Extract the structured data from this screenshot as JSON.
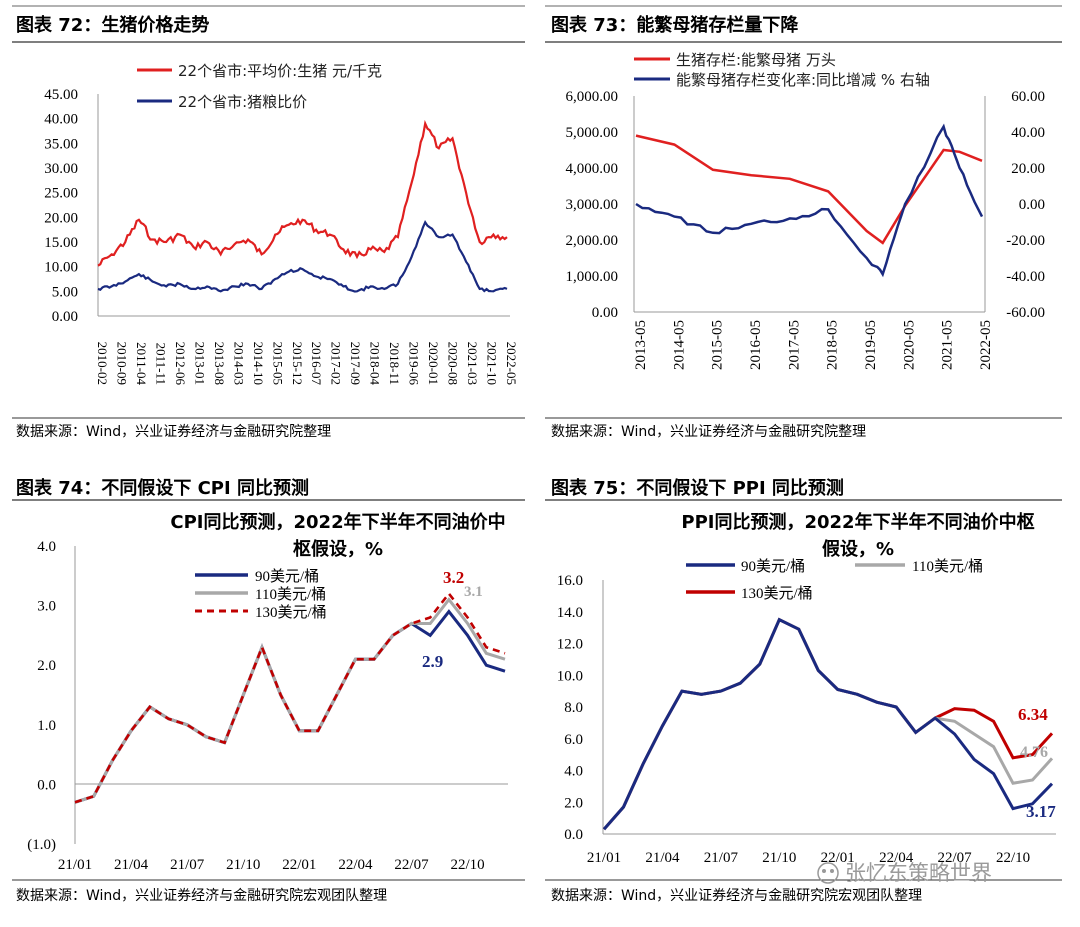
{
  "charts": [
    {
      "heading": "图表 72：生猪价格走势",
      "source": "数据来源：Wind，兴业证券经济与金融研究院整理",
      "legend": [
        "22个省市:平均价:生猪 元/千克",
        "22个省市:猪粮比价"
      ],
      "y_ticks": [
        "45.00",
        "40.00",
        "35.00",
        "30.00",
        "25.00",
        "20.00",
        "15.00",
        "10.00",
        "5.00",
        "0.00"
      ],
      "x_ticks": [
        "2010-02",
        "2010-09",
        "2011-04",
        "2011-11",
        "2012-06",
        "2013-01",
        "2013-08",
        "2014-03",
        "2014-10",
        "2015-05",
        "2015-12",
        "2016-07",
        "2017-02",
        "2017-09",
        "2018-04",
        "2018-11",
        "2019-06",
        "2020-01",
        "2020-08",
        "2021-03",
        "2021-10",
        "2022-05"
      ]
    },
    {
      "heading": "图表 73：能繁母猪存栏量下降",
      "source": "数据来源：Wind，兴业证券经济与金融研究院整理",
      "legend": [
        "生猪存栏:能繁母猪 万头",
        "能繁母猪存栏变化率:同比增减 % 右轴"
      ],
      "y_ticks": [
        "6,000.00",
        "5,000.00",
        "4,000.00",
        "3,000.00",
        "2,000.00",
        "1,000.00",
        "0.00"
      ],
      "y2_ticks": [
        "60.00",
        "40.00",
        "20.00",
        "0.00",
        "-20.00",
        "-40.00",
        "-60.00"
      ],
      "x_ticks": [
        "2013-05",
        "2014-05",
        "2015-05",
        "2016-05",
        "2017-05",
        "2018-05",
        "2019-05",
        "2020-05",
        "2021-05",
        "2022-05"
      ]
    },
    {
      "heading": "图表 74：不同假设下 CPI 同比预测",
      "source": "数据来源：Wind，兴业证券经济与金融研究院宏观团队整理",
      "title_lines": [
        "CPI同比预测，2022年下半年不同油价中",
        "枢假设，%"
      ],
      "legend": [
        "90美元/桶",
        "110美元/桶",
        "130美元/桶"
      ],
      "y_ticks": [
        "4.0",
        "3.0",
        "2.0",
        "1.0",
        "0.0",
        "(1.0)"
      ],
      "x_ticks": [
        "21/01",
        "21/04",
        "21/07",
        "21/10",
        "22/01",
        "22/04",
        "22/07",
        "22/10"
      ],
      "annotations": [
        "3.2",
        "3.1",
        "2.9"
      ]
    },
    {
      "heading": "图表 75：不同假设下 PPI 同比预测",
      "source": "数据来源：Wind，兴业证券经济与金融研究院宏观团队整理",
      "title_lines": [
        "PPI同比预测，2022年下半年不同油价中枢",
        "假设，%"
      ],
      "legend": [
        "90美元/桶",
        "110美元/桶",
        "130美元/桶"
      ],
      "y_ticks": [
        "16.0",
        "14.0",
        "12.0",
        "10.0",
        "8.0",
        "6.0",
        "4.0",
        "2.0",
        "0.0"
      ],
      "x_ticks": [
        "21/01",
        "21/04",
        "21/07",
        "21/10",
        "22/01",
        "22/04",
        "22/07",
        "22/10"
      ],
      "annotations": [
        "6.34",
        "4.76",
        "3.17"
      ]
    }
  ],
  "watermark": "张忆东策略世界",
  "colors": {
    "red": "#e02020",
    "navy": "#1a2a80",
    "gray": "#a8a8a8",
    "dark_red": "#c00000"
  },
  "chart_data": [
    {
      "type": "line",
      "title": "图表 72：生猪价格走势",
      "ylim": [
        0,
        45
      ],
      "x_range": [
        "2010-02",
        "2022-05"
      ],
      "series": [
        {
          "name": "22个省市:平均价:生猪 元/千克",
          "unit_step": "half-year",
          "values": [
            10.2,
            12.5,
            15.0,
            19.5,
            15.5,
            15.0,
            16.5,
            14.0,
            15.0,
            12.5,
            14.5,
            15.5,
            12.5,
            16.5,
            18.5,
            19.5,
            17.5,
            16.5,
            13.5,
            12.0,
            13.5,
            13.0,
            16.0,
            27.0,
            39.0,
            34.0,
            36.0,
            25.0,
            15.0,
            16.5,
            16.0
          ]
        },
        {
          "name": "22个省市:猪粮比价",
          "unit_step": "half-year",
          "values": [
            5.5,
            6.0,
            7.0,
            8.5,
            7.0,
            6.0,
            6.5,
            5.5,
            6.0,
            5.0,
            6.0,
            6.5,
            5.5,
            7.5,
            9.0,
            9.5,
            8.0,
            7.5,
            6.0,
            5.0,
            6.0,
            5.5,
            6.5,
            12.0,
            19.0,
            16.0,
            16.5,
            11.0,
            5.5,
            5.0,
            5.5
          ]
        }
      ]
    },
    {
      "type": "line",
      "title": "图表 73：能繁母猪存栏量下降",
      "ylim": [
        0,
        6000
      ],
      "y2lim": [
        -60,
        60
      ],
      "x": [
        "2013-05",
        "2014-05",
        "2015-05",
        "2016-05",
        "2017-05",
        "2018-05",
        "2019-05",
        "2019-10",
        "2020-05",
        "2021-05",
        "2021-10",
        "2022-05"
      ],
      "series": [
        {
          "name": "生猪存栏:能繁母猪 万头",
          "axis": "left",
          "values": [
            4900,
            4650,
            3950,
            3800,
            3700,
            3350,
            2250,
            1920,
            2950,
            4500,
            4450,
            4200
          ]
        },
        {
          "name": "能繁母猪存栏变化率:同比增减 % 右轴",
          "axis": "right",
          "values": [
            0,
            -7,
            -16,
            -11,
            -8,
            -3,
            -30,
            -39,
            0,
            43,
            20,
            -7
          ]
        }
      ]
    },
    {
      "type": "line",
      "title": "CPI同比预测，2022年下半年不同油价中枢假设，%",
      "ylim": [
        -1,
        4
      ],
      "x": [
        "21/01",
        "21/02",
        "21/03",
        "21/04",
        "21/05",
        "21/06",
        "21/07",
        "21/08",
        "21/09",
        "21/10",
        "21/11",
        "21/12",
        "22/01",
        "22/02",
        "22/03",
        "22/04",
        "22/05",
        "22/06",
        "22/07",
        "22/08",
        "22/09",
        "22/10",
        "22/11",
        "22/12"
      ],
      "series": [
        {
          "name": "90美元/桶",
          "values": [
            -0.3,
            -0.2,
            0.4,
            0.9,
            1.3,
            1.1,
            1.0,
            0.8,
            0.7,
            1.5,
            2.3,
            1.5,
            0.9,
            0.9,
            1.5,
            2.1,
            2.1,
            2.5,
            2.7,
            2.5,
            2.9,
            2.5,
            2.0,
            1.9
          ]
        },
        {
          "name": "110美元/桶",
          "values": [
            -0.3,
            -0.2,
            0.4,
            0.9,
            1.3,
            1.1,
            1.0,
            0.8,
            0.7,
            1.5,
            2.3,
            1.5,
            0.9,
            0.9,
            1.5,
            2.1,
            2.1,
            2.5,
            2.7,
            2.7,
            3.1,
            2.7,
            2.2,
            2.1
          ]
        },
        {
          "name": "130美元/桶",
          "values": [
            -0.3,
            -0.2,
            0.4,
            0.9,
            1.3,
            1.1,
            1.0,
            0.8,
            0.7,
            1.5,
            2.3,
            1.5,
            0.9,
            0.9,
            1.5,
            2.1,
            2.1,
            2.5,
            2.7,
            2.8,
            3.2,
            2.8,
            2.3,
            2.2
          ]
        }
      ],
      "annotations": [
        {
          "text": "3.2",
          "series": "130美元/桶",
          "x": "22/09"
        },
        {
          "text": "3.1",
          "series": "110美元/桶",
          "x": "22/09"
        },
        {
          "text": "2.9",
          "series": "90美元/桶",
          "x": "22/09"
        }
      ]
    },
    {
      "type": "line",
      "title": "PPI同比预测，2022年下半年不同油价中枢假设，%",
      "ylim": [
        0,
        16
      ],
      "x": [
        "21/01",
        "21/02",
        "21/03",
        "21/04",
        "21/05",
        "21/06",
        "21/07",
        "21/08",
        "21/09",
        "21/10",
        "21/11",
        "21/12",
        "22/01",
        "22/02",
        "22/03",
        "22/04",
        "22/05",
        "22/06",
        "22/07",
        "22/08",
        "22/09",
        "22/10",
        "22/11",
        "22/12"
      ],
      "series": [
        {
          "name": "90美元/桶",
          "values": [
            0.3,
            1.7,
            4.4,
            6.8,
            9.0,
            8.8,
            9.0,
            9.5,
            10.7,
            13.5,
            12.9,
            10.3,
            9.1,
            8.8,
            8.3,
            8.0,
            6.4,
            7.3,
            6.3,
            4.7,
            3.8,
            1.6,
            1.9,
            3.17
          ]
        },
        {
          "name": "110美元/桶",
          "values": [
            0.3,
            1.7,
            4.4,
            6.8,
            9.0,
            8.8,
            9.0,
            9.5,
            10.7,
            13.5,
            12.9,
            10.3,
            9.1,
            8.8,
            8.3,
            8.0,
            6.4,
            7.3,
            7.1,
            6.3,
            5.5,
            3.2,
            3.4,
            4.76
          ]
        },
        {
          "name": "130美元/桶",
          "values": [
            0.3,
            1.7,
            4.4,
            6.8,
            9.0,
            8.8,
            9.0,
            9.5,
            10.7,
            13.5,
            12.9,
            10.3,
            9.1,
            8.8,
            8.3,
            8.0,
            6.4,
            7.3,
            7.9,
            7.8,
            7.1,
            4.8,
            5.0,
            6.34
          ]
        }
      ],
      "annotations": [
        {
          "text": "6.34",
          "series": "130美元/桶",
          "x": "22/12"
        },
        {
          "text": "4.76",
          "series": "110美元/桶",
          "x": "22/12"
        },
        {
          "text": "3.17",
          "series": "90美元/桶",
          "x": "22/12"
        }
      ]
    }
  ]
}
